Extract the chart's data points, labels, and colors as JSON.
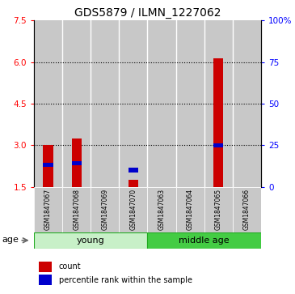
{
  "title": "GDS5879 / ILMN_1227062",
  "samples": [
    "GSM1847067",
    "GSM1847068",
    "GSM1847069",
    "GSM1847070",
    "GSM1847063",
    "GSM1847064",
    "GSM1847065",
    "GSM1847066"
  ],
  "red_values": [
    3.02,
    3.25,
    1.5,
    1.75,
    1.5,
    1.5,
    6.15,
    1.5
  ],
  "blue_values": [
    2.3,
    2.35,
    0,
    2.1,
    0,
    0,
    3.0,
    0
  ],
  "y_min": 1.5,
  "y_max": 7.5,
  "y_ticks_left": [
    1.5,
    3.0,
    4.5,
    6.0,
    7.5
  ],
  "y_ticks_right_pct": [
    0,
    25,
    50,
    75,
    100
  ],
  "groups": [
    {
      "label": "young",
      "start": 0,
      "end": 4,
      "color": "#aaeea0"
    },
    {
      "label": "middle age",
      "start": 4,
      "end": 8,
      "color": "#44dd44"
    }
  ],
  "group_label": "age",
  "bar_color_red": "#cc0000",
  "bar_color_blue": "#0000cc",
  "legend_red": "count",
  "legend_blue": "percentile rank within the sample",
  "bg_color": "#c8c8c8",
  "sep_color": "#ffffff",
  "title_fontsize": 10,
  "tick_fontsize": 7.5,
  "sample_fontsize": 5.5,
  "group_fontsize": 8,
  "legend_fontsize": 7
}
